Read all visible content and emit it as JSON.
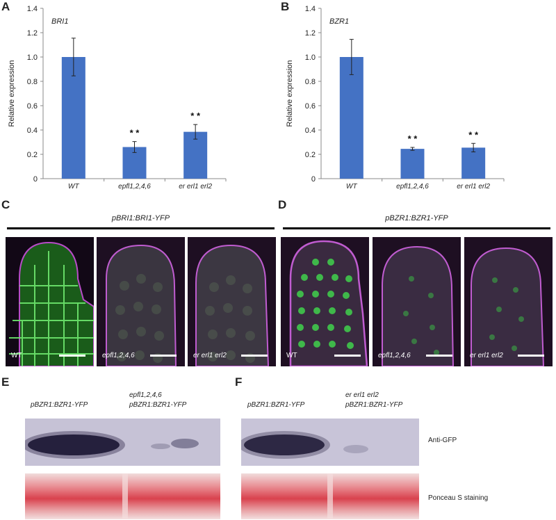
{
  "panels": {
    "A": "A",
    "B": "B",
    "C": "C",
    "D": "D",
    "E": "E",
    "F": "F"
  },
  "chart_data": [
    {
      "type": "bar",
      "title": "BRI1",
      "ylabel": "Relative expression",
      "xlabel": "",
      "categories": [
        "WT",
        "epfl1,2,4,6",
        "er erl1 erl2"
      ],
      "values": [
        1.0,
        0.26,
        0.385
      ],
      "errors": [
        0.155,
        0.045,
        0.06
      ],
      "significance": [
        "",
        "* *",
        "* *"
      ],
      "ylim": [
        0,
        1.4
      ],
      "yticks": [
        "0",
        "0.2",
        "0.4",
        "0.6",
        "0.8",
        "1.0",
        "1.2",
        "1.4"
      ],
      "bar_color": "#4472C4"
    },
    {
      "type": "bar",
      "title": "BZR1",
      "ylabel": "Relative expression",
      "xlabel": "",
      "categories": [
        "WT",
        "epfl1,2,4,6",
        "er erl1 erl2"
      ],
      "values": [
        1.0,
        0.245,
        0.255
      ],
      "errors": [
        0.145,
        0.012,
        0.035
      ],
      "significance": [
        "",
        "* *",
        "* *"
      ],
      "ylim": [
        0,
        1.4
      ],
      "yticks": [
        "0",
        "0.2",
        "0.4",
        "0.6",
        "0.8",
        "1.0",
        "1.2",
        "1.4"
      ],
      "bar_color": "#4472C4"
    }
  ],
  "microscopy": {
    "C_header": "pBRI1:BRI1-YFP",
    "D_header": "pBZR1:BZR1-YFP",
    "C_images": [
      "WT",
      "epfl1,2,4,6",
      "er erl1 erl2"
    ],
    "D_images": [
      "WT",
      "epfl1,2,4,6",
      "er erl1 erl2"
    ]
  },
  "blots": {
    "E_lane1": "pBZR1:BZR1-YFP",
    "E_lane2_line1": "epfl1,2,4,6",
    "E_lane2_line2": "pBZR1:BZR1-YFP",
    "F_lane1": "pBZR1:BZR1-YFP",
    "F_lane2_line1": "er erl1 erl2",
    "F_lane2_line2": "pBZR1:BZR1-YFP",
    "anti_gfp": "Anti-GFP",
    "ponceau": "Ponceau S staining"
  }
}
